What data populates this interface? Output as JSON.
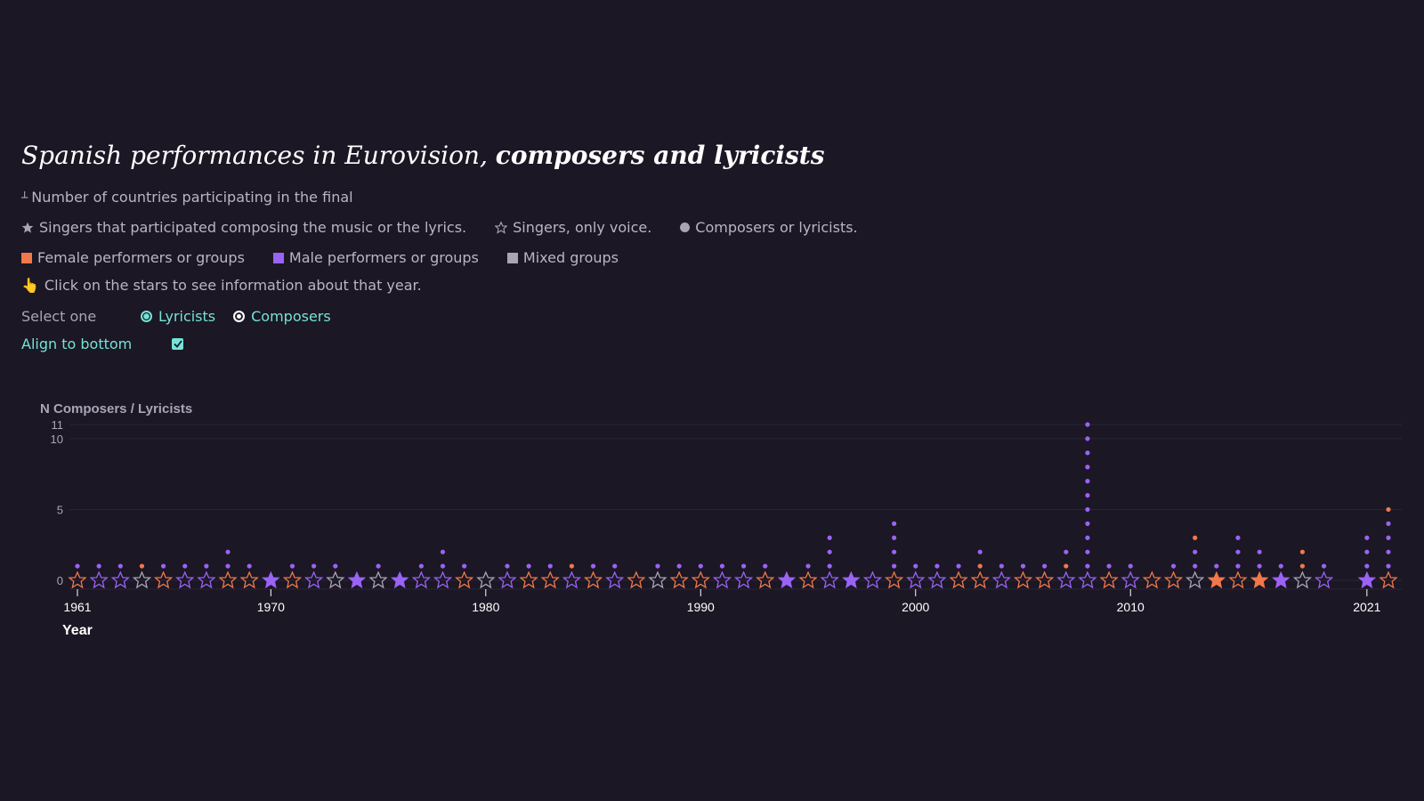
{
  "title": {
    "part1": "Spanish performances in Eurovision,",
    "part2": "composers and lyricists"
  },
  "countries_note": "Number of countries participating in the final",
  "legend_symbols": [
    {
      "icon": "filled-star-icon",
      "label": "Singers that participated composing the music or the lyrics."
    },
    {
      "icon": "outline-star-icon",
      "label": "Singers, only voice."
    },
    {
      "icon": "dot-icon",
      "label": "Composers or lyricists."
    }
  ],
  "legend_colors": [
    {
      "label": "Female performers or groups",
      "color": "#f0784a"
    },
    {
      "label": "Male performers or groups",
      "color": "#9a63f5"
    },
    {
      "label": "Mixed groups",
      "color": "#a9a5b7"
    }
  ],
  "hint": {
    "icon": "pointing-hand-icon",
    "glyph": "👆",
    "text": "Click on the stars to see information about that year."
  },
  "select": {
    "label": "Select one",
    "options": [
      "Lyricists",
      "Composers"
    ],
    "selected": "Lyricists"
  },
  "align": {
    "label": "Align to bottom",
    "checked": true
  },
  "colors": {
    "female": "#f0784a",
    "male": "#9a63f5",
    "mixed": "#a9a5b7",
    "accent": "#74e3d8",
    "background": "#1b1724"
  },
  "chart_data": {
    "type": "scatter",
    "ylabel": "N Composers / Lyricists",
    "xlabel": "Year",
    "yticks": [
      0,
      5,
      10,
      11
    ],
    "xticks": [
      "1961",
      "1970",
      "1980",
      "1990",
      "2000",
      "2010",
      "2021"
    ],
    "xlim": [
      1961,
      2022
    ],
    "ylim": [
      0,
      11
    ],
    "align_bottom": true,
    "points": [
      {
        "year": 1961,
        "g": "F",
        "w": false,
        "n": 1,
        "c": "M"
      },
      {
        "year": 1962,
        "g": "M",
        "w": false,
        "n": 1,
        "c": "M"
      },
      {
        "year": 1963,
        "g": "M",
        "w": false,
        "n": 1,
        "c": "M"
      },
      {
        "year": 1964,
        "g": "X",
        "w": false,
        "n": 1,
        "c": "F"
      },
      {
        "year": 1965,
        "g": "F",
        "w": false,
        "n": 1,
        "c": "M"
      },
      {
        "year": 1966,
        "g": "M",
        "w": false,
        "n": 1,
        "c": "M"
      },
      {
        "year": 1967,
        "g": "M",
        "w": false,
        "n": 1,
        "c": "M"
      },
      {
        "year": 1968,
        "g": "F",
        "w": false,
        "n": 2,
        "c": "M"
      },
      {
        "year": 1969,
        "g": "F",
        "w": false,
        "n": 1,
        "c": "M"
      },
      {
        "year": 1970,
        "g": "M",
        "w": true,
        "n": 0,
        "c": "M"
      },
      {
        "year": 1971,
        "g": "F",
        "w": false,
        "n": 1,
        "c": "M"
      },
      {
        "year": 1972,
        "g": "M",
        "w": false,
        "n": 1,
        "c": "M"
      },
      {
        "year": 1973,
        "g": "X",
        "w": false,
        "n": 1,
        "c": "M"
      },
      {
        "year": 1974,
        "g": "M",
        "w": true,
        "n": 0,
        "c": "M"
      },
      {
        "year": 1975,
        "g": "X",
        "w": false,
        "n": 1,
        "c": "M"
      },
      {
        "year": 1976,
        "g": "M",
        "w": true,
        "n": 0,
        "c": "M"
      },
      {
        "year": 1977,
        "g": "M",
        "w": false,
        "n": 1,
        "c": "M"
      },
      {
        "year": 1978,
        "g": "M",
        "w": false,
        "n": 2,
        "c": "M"
      },
      {
        "year": 1979,
        "g": "F",
        "w": false,
        "n": 1,
        "c": "M"
      },
      {
        "year": 1980,
        "g": "X",
        "w": false,
        "n": 0,
        "c": "M"
      },
      {
        "year": 1981,
        "g": "M",
        "w": false,
        "n": 1,
        "c": "M"
      },
      {
        "year": 1982,
        "g": "F",
        "w": false,
        "n": 1,
        "c": "M"
      },
      {
        "year": 1983,
        "g": "F",
        "w": false,
        "n": 1,
        "c": "M"
      },
      {
        "year": 1984,
        "g": "M",
        "w": false,
        "n": 1,
        "c": "F"
      },
      {
        "year": 1985,
        "g": "F",
        "w": false,
        "n": 1,
        "c": "M"
      },
      {
        "year": 1986,
        "g": "M",
        "w": false,
        "n": 1,
        "c": "M"
      },
      {
        "year": 1987,
        "g": "F",
        "w": false,
        "n": 0,
        "c": "M"
      },
      {
        "year": 1988,
        "g": "X",
        "w": false,
        "n": 1,
        "c": "M"
      },
      {
        "year": 1989,
        "g": "F",
        "w": false,
        "n": 1,
        "c": "M"
      },
      {
        "year": 1990,
        "g": "F",
        "w": false,
        "n": 1,
        "c": "M"
      },
      {
        "year": 1991,
        "g": "M",
        "w": false,
        "n": 1,
        "c": "M"
      },
      {
        "year": 1992,
        "g": "M",
        "w": false,
        "n": 1,
        "c": "M"
      },
      {
        "year": 1993,
        "g": "F",
        "w": false,
        "n": 1,
        "c": "M"
      },
      {
        "year": 1994,
        "g": "M",
        "w": true,
        "n": 0,
        "c": "M"
      },
      {
        "year": 1995,
        "g": "F",
        "w": false,
        "n": 1,
        "c": "M"
      },
      {
        "year": 1996,
        "g": "M",
        "w": false,
        "n": 3,
        "c": "M"
      },
      {
        "year": 1997,
        "g": "M",
        "w": true,
        "n": 0,
        "c": "M"
      },
      {
        "year": 1998,
        "g": "M",
        "w": false,
        "n": 0,
        "c": "M"
      },
      {
        "year": 1999,
        "g": "F",
        "w": false,
        "n": 4,
        "c": "M"
      },
      {
        "year": 2000,
        "g": "M",
        "w": false,
        "n": 1,
        "c": "M"
      },
      {
        "year": 2001,
        "g": "M",
        "w": false,
        "n": 1,
        "c": "M"
      },
      {
        "year": 2002,
        "g": "F",
        "w": false,
        "n": 1,
        "c": "M"
      },
      {
        "year": 2003,
        "g": "F",
        "w": false,
        "n": 2,
        "c": "M",
        "bc": "F"
      },
      {
        "year": 2004,
        "g": "M",
        "w": false,
        "n": 1,
        "c": "M"
      },
      {
        "year": 2005,
        "g": "F",
        "w": false,
        "n": 1,
        "c": "M"
      },
      {
        "year": 2006,
        "g": "F",
        "w": false,
        "n": 1,
        "c": "M"
      },
      {
        "year": 2007,
        "g": "M",
        "w": false,
        "n": 2,
        "c": "M",
        "bc": "F"
      },
      {
        "year": 2008,
        "g": "M",
        "w": false,
        "n": 11,
        "c": "M"
      },
      {
        "year": 2009,
        "g": "F",
        "w": false,
        "n": 1,
        "c": "M"
      },
      {
        "year": 2010,
        "g": "M",
        "w": false,
        "n": 1,
        "c": "M"
      },
      {
        "year": 2011,
        "g": "F",
        "w": false,
        "n": 0,
        "c": "M"
      },
      {
        "year": 2012,
        "g": "F",
        "w": false,
        "n": 1,
        "c": "M"
      },
      {
        "year": 2013,
        "g": "X",
        "w": false,
        "n": 3,
        "c": "M",
        "tc": "F"
      },
      {
        "year": 2014,
        "g": "F",
        "w": true,
        "n": 1,
        "c": "M"
      },
      {
        "year": 2015,
        "g": "F",
        "w": false,
        "n": 3,
        "c": "M"
      },
      {
        "year": 2016,
        "g": "F",
        "w": true,
        "n": 2,
        "c": "M"
      },
      {
        "year": 2017,
        "g": "M",
        "w": true,
        "n": 1,
        "c": "M"
      },
      {
        "year": 2018,
        "g": "X",
        "w": false,
        "n": 2,
        "c": "F"
      },
      {
        "year": 2019,
        "g": "M",
        "w": false,
        "n": 1,
        "c": "M"
      },
      {
        "year": 2021,
        "g": "M",
        "w": true,
        "n": 3,
        "c": "M"
      },
      {
        "year": 2022,
        "g": "F",
        "w": false,
        "n": 5,
        "c": "M",
        "tc": "F"
      }
    ]
  }
}
